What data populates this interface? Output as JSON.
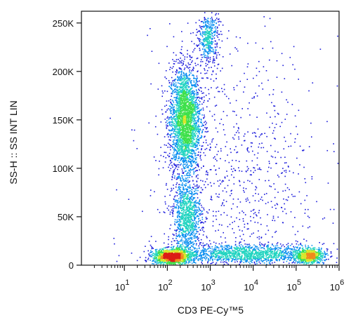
{
  "chart_data": {
    "type": "scatter",
    "style": "density-pseudocolor flow cytometry dot plot",
    "xlabel": "CD3 PE-Cy™5",
    "ylabel": "SS-H :: SS INT LIN",
    "x_scale": "log",
    "x_range_decades": [
      0,
      6
    ],
    "x_ticks": [
      {
        "value": 1,
        "base": "10",
        "exp": "1"
      },
      {
        "value": 2,
        "base": "10",
        "exp": "2"
      },
      {
        "value": 3,
        "base": "10",
        "exp": "3"
      },
      {
        "value": 4,
        "base": "10",
        "exp": "4"
      },
      {
        "value": 5,
        "base": "10",
        "exp": "5"
      },
      {
        "value": 6,
        "base": "10",
        "exp": "6"
      }
    ],
    "y_scale": "linear",
    "ylim": [
      0,
      262144
    ],
    "y_ticks": [
      {
        "value": 0,
        "label": "0"
      },
      {
        "value": 50000,
        "label": "50K"
      },
      {
        "value": 100000,
        "label": "100K"
      },
      {
        "value": 150000,
        "label": "150K"
      },
      {
        "value": 200000,
        "label": "200K"
      },
      {
        "value": 250000,
        "label": "250K"
      }
    ],
    "density_colors": [
      "#1a1adb",
      "#0a8ff0",
      "#22d4c0",
      "#3ee04a",
      "#d7e62a",
      "#f08a1c",
      "#dc1c16"
    ],
    "populations": [
      {
        "x_log_center": 2.4,
        "x_log_sd": 0.18,
        "y_center": 150000,
        "y_sd": 28000,
        "share": 0.3
      },
      {
        "x_log_center": 2.1,
        "x_log_sd": 0.22,
        "y_center": 9000,
        "y_sd": 4000,
        "share": 0.14
      },
      {
        "x_log_center": 5.3,
        "x_log_sd": 0.17,
        "y_center": 10000,
        "y_sd": 4000,
        "share": 0.07
      },
      {
        "x_log_center": 2.45,
        "x_log_sd": 0.17,
        "y_center": 50000,
        "y_sd": 18000,
        "share": 0.11
      },
      {
        "x_log_center": 2.95,
        "x_log_sd": 0.12,
        "y_center": 235000,
        "y_sd": 15000,
        "share": 0.05
      },
      {
        "x_log_center": 3.8,
        "x_log_sd": 0.9,
        "y_center": 12000,
        "y_sd": 5000,
        "share": 0.17
      },
      {
        "x_log_center": 3.6,
        "x_log_sd": 1.0,
        "y_center": 90000,
        "y_sd": 70000,
        "share": 0.1
      }
    ],
    "grid": false,
    "legend": "none"
  }
}
